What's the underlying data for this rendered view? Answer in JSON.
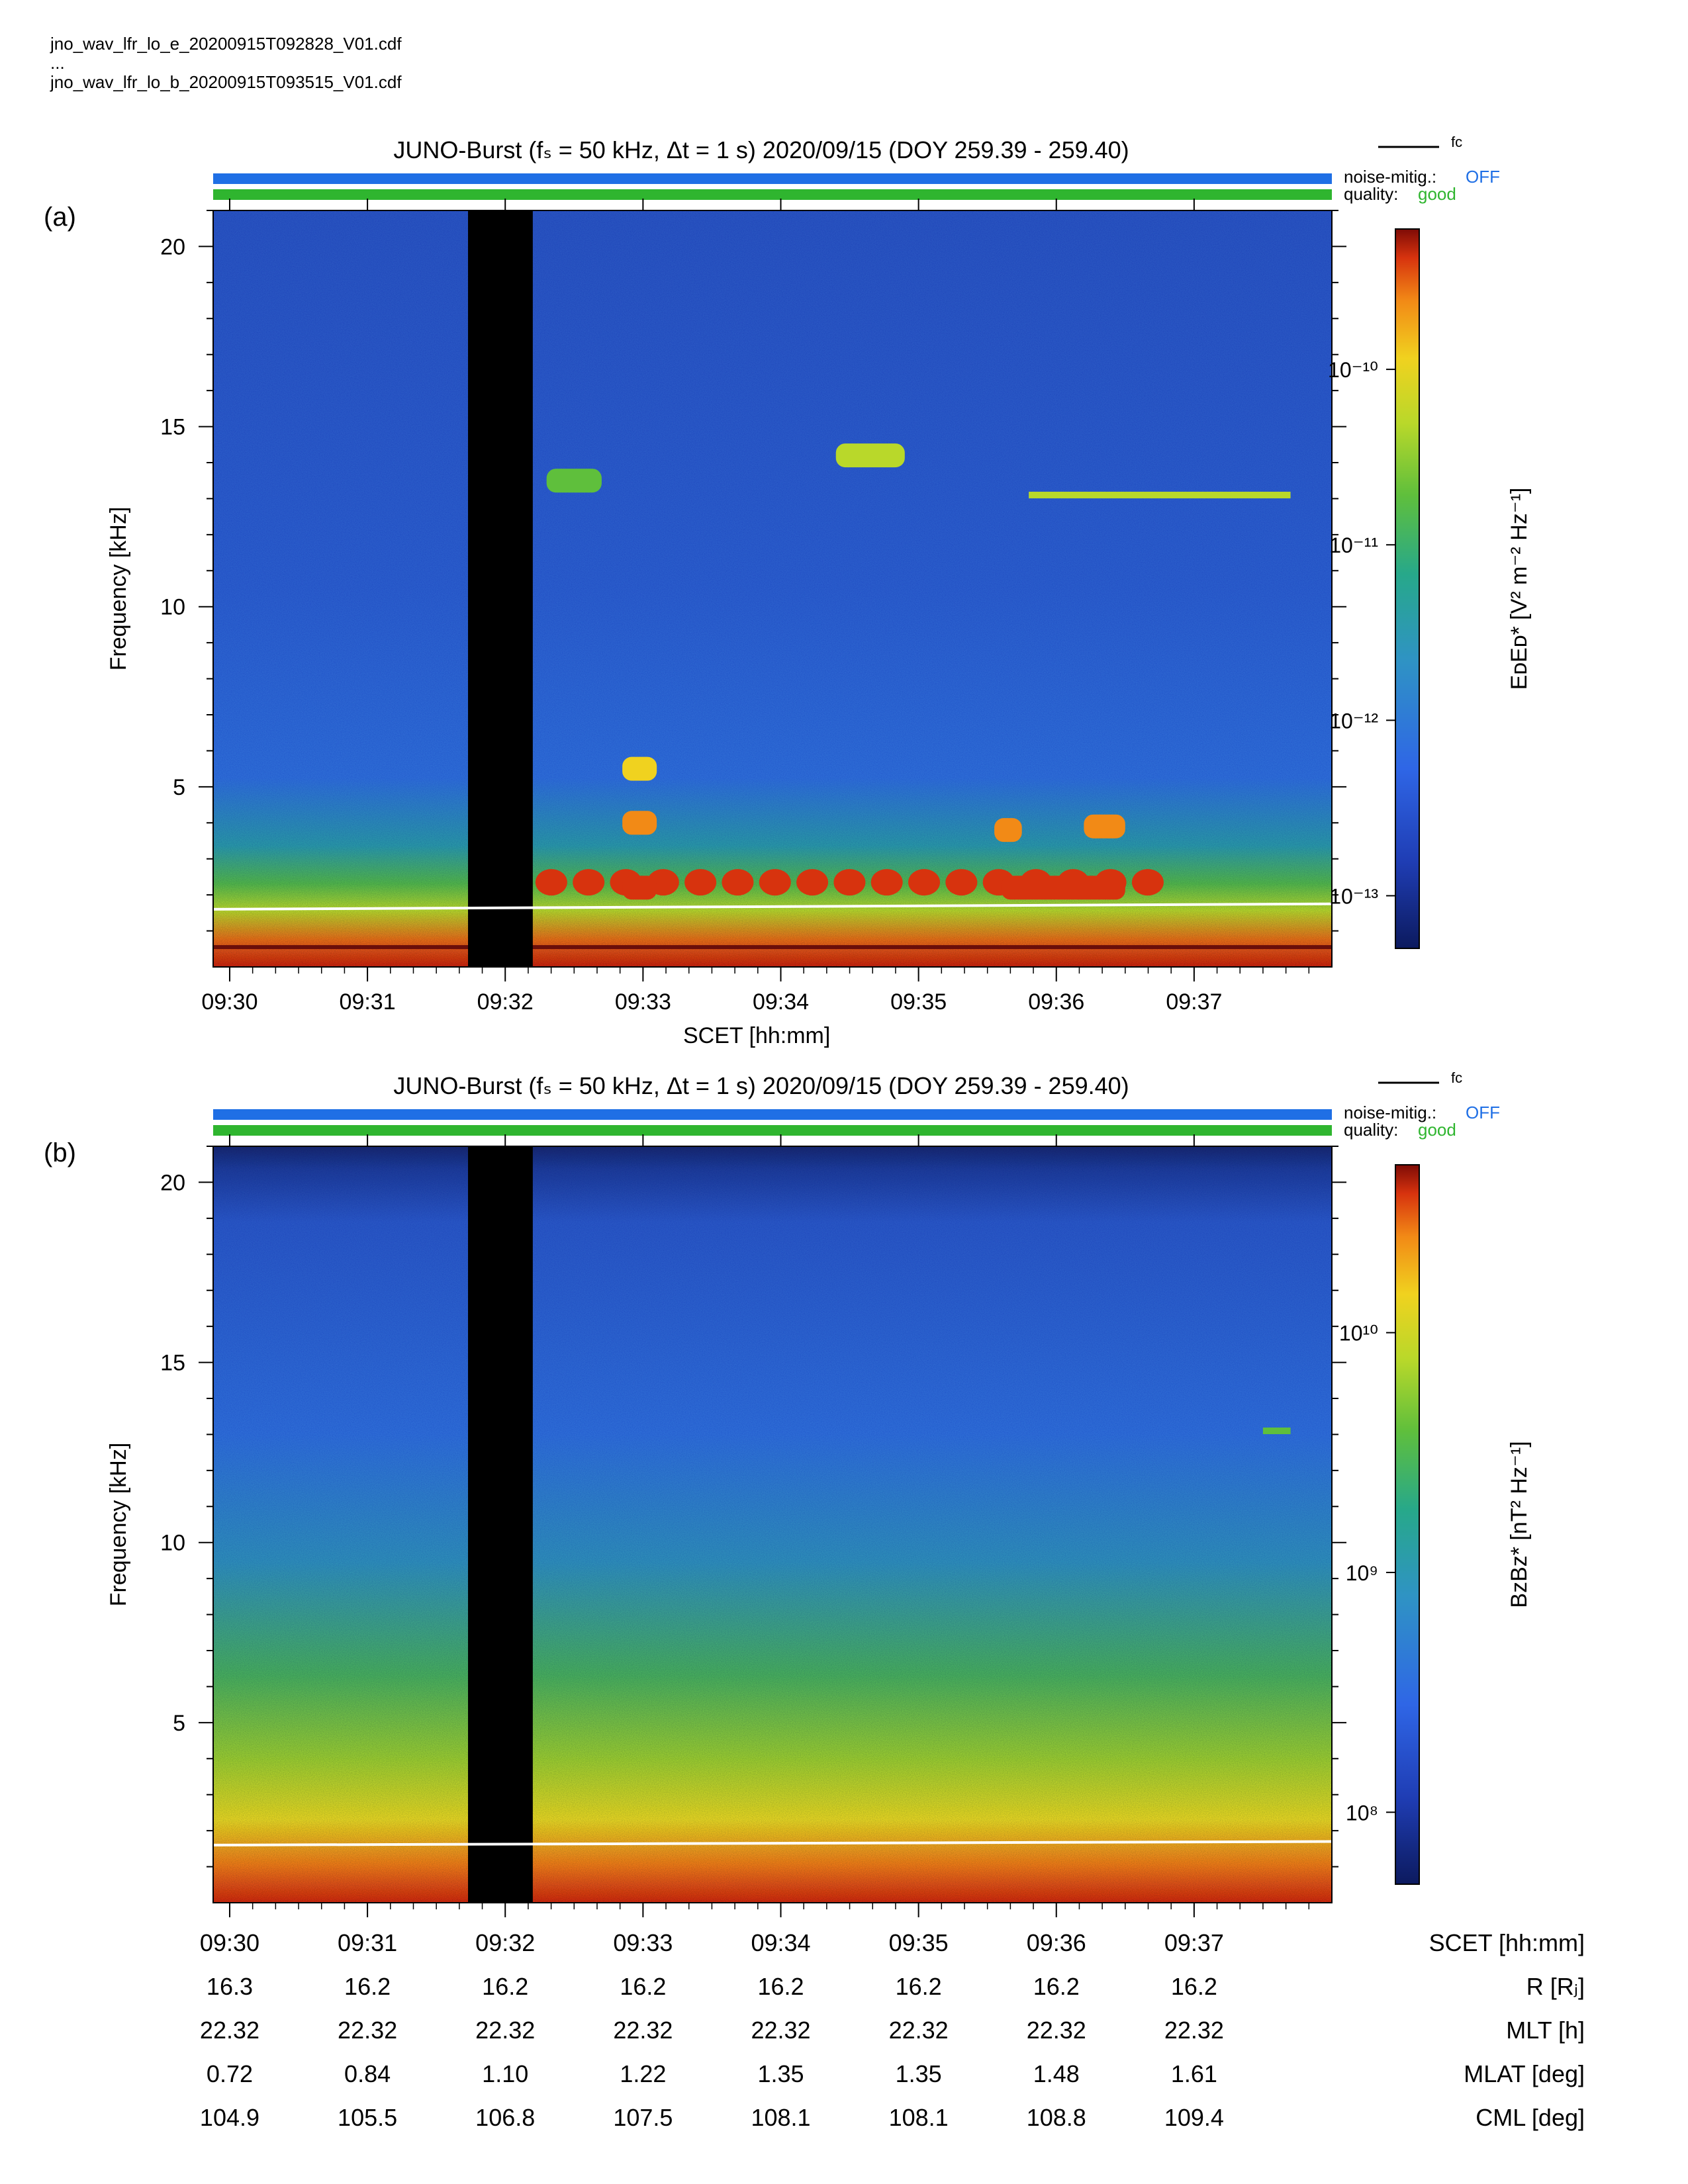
{
  "files": [
    "jno_wav_lfr_lo_e_20200915T092828_V01.cdf",
    "...",
    "jno_wav_lfr_lo_b_20200915T093515_V01.cdf"
  ],
  "panels": [
    {
      "letter": "(a)",
      "title": "JUNO-Burst (fₛ = 50 kHz, Δt = 1 s)  2020/09/15 (DOY 259.39 - 259.40)",
      "fc_legend": "fᴄ",
      "noise_label": "noise-mitig.:",
      "noise_value": "OFF",
      "quality_label": "quality:",
      "quality_value": "good",
      "ylabel": "Frequency [kHz]",
      "xlabel": "SCET [hh:mm]",
      "cbar_label": "EᴅEᴅ* [V² m⁻² Hz⁻¹]"
    },
    {
      "letter": "(b)",
      "title": "JUNO-Burst (fₛ = 50 kHz, Δt = 1 s)  2020/09/15 (DOY 259.39 - 259.40)",
      "fc_legend": "fᴄ",
      "noise_label": "noise-mitig.:",
      "noise_value": "OFF",
      "quality_label": "quality:",
      "quality_value": "good",
      "ylabel": "Frequency [kHz]",
      "cbar_label": "BᴢBᴢ* [nT² Hz⁻¹]"
    }
  ],
  "colors": {
    "noise_bar": "#1f6fe5",
    "quality_bar": "#2fb52f",
    "noise_text": "#1f6fe5",
    "quality_text": "#2fb52f",
    "data_gap": "#000000",
    "fc_line": "#ffffff"
  },
  "ephemeris": {
    "labels": [
      "SCET [hh:mm]",
      "R [Rⱼ]",
      "MLT [h]",
      "MLAT [deg]",
      "CML [deg]"
    ],
    "rows": [
      [
        "09:30",
        "09:31",
        "09:32",
        "09:33",
        "09:34",
        "09:35",
        "09:36",
        "09:37"
      ],
      [
        "16.3",
        "16.2",
        "16.2",
        "16.2",
        "16.2",
        "16.2",
        "16.2",
        "16.2"
      ],
      [
        "22.32",
        "22.32",
        "22.32",
        "22.32",
        "22.32",
        "22.32",
        "22.32",
        "22.32"
      ],
      [
        "0.72",
        "0.84",
        "1.10",
        "1.22",
        "1.35",
        "1.35",
        "1.48",
        "1.61"
      ],
      [
        "104.9",
        "105.5",
        "106.8",
        "107.5",
        "108.1",
        "108.1",
        "108.8",
        "109.4"
      ]
    ]
  },
  "chart_data": [
    {
      "type": "heatmap",
      "title": "JUNO-Burst (fₛ = 50 kHz, Δt = 1 s)  2020/09/15 (DOY 259.39 - 259.40)",
      "xlabel": "SCET [hh:mm]",
      "ylabel": "Frequency [kHz]",
      "x_ticks": [
        "09:30",
        "09:31",
        "09:32",
        "09:33",
        "09:34",
        "09:35",
        "09:36",
        "09:37"
      ],
      "x_range_min": [
        29.88,
        38.0
      ],
      "y_ticks": [
        5,
        10,
        15,
        20
      ],
      "ylim": [
        0,
        21
      ],
      "colorbar": {
        "label": "EᴅEᴅ* [V² m⁻² Hz⁻¹]",
        "scale": "log",
        "tick_labels": [
          "10⁻¹⁰",
          "10⁻¹¹",
          "10⁻¹²",
          "10⁻¹³"
        ],
        "tick_values": [
          -10,
          -11,
          -12,
          -13
        ],
        "range_log10": [
          -13.3,
          -9.2
        ]
      },
      "data_gap_min": [
        31.73,
        32.2
      ],
      "fc_line_khz": [
        1.6,
        1.75
      ],
      "features": [
        {
          "name": "band",
          "t_min": [
            32.2,
            36.8
          ],
          "f_khz": 2.35,
          "level_log10": -9.6
        },
        {
          "name": "blob",
          "t_min": [
            32.85,
            33.1
          ],
          "f_khz": 2.2,
          "level_log10": -9.4
        },
        {
          "name": "blob",
          "t_min": [
            35.6,
            36.5
          ],
          "f_khz": 2.2,
          "level_log10": -9.4
        },
        {
          "name": "blob",
          "t_min": [
            32.85,
            33.1
          ],
          "f_khz": 4.0,
          "level_log10": -9.8
        },
        {
          "name": "blob",
          "t_min": [
            32.85,
            33.1
          ],
          "f_khz": 5.5,
          "level_log10": -10.0
        },
        {
          "name": "blob",
          "t_min": [
            35.55,
            35.75
          ],
          "f_khz": 3.8,
          "level_log10": -9.8
        },
        {
          "name": "blob",
          "t_min": [
            36.2,
            36.5
          ],
          "f_khz": 3.9,
          "level_log10": -9.8
        },
        {
          "name": "line",
          "t_min": [
            35.8,
            37.7
          ],
          "f_khz": 13.1,
          "level_log10": -10.6
        },
        {
          "name": "blob",
          "t_min": [
            34.4,
            34.9
          ],
          "f_khz": 14.2,
          "level_log10": -10.4
        },
        {
          "name": "blob",
          "t_min": [
            32.3,
            32.7
          ],
          "f_khz": 13.5,
          "level_log10": -10.8
        }
      ]
    },
    {
      "type": "heatmap",
      "title": "JUNO-Burst (fₛ = 50 kHz, Δt = 1 s)  2020/09/15 (DOY 259.39 - 259.40)",
      "xlabel": "SCET [hh:mm]",
      "ylabel": "Frequency [kHz]",
      "x_ticks": [
        "09:30",
        "09:31",
        "09:32",
        "09:33",
        "09:34",
        "09:35",
        "09:36",
        "09:37"
      ],
      "x_range_min": [
        29.88,
        38.0
      ],
      "y_ticks": [
        5,
        10,
        15,
        20
      ],
      "ylim": [
        0,
        21
      ],
      "colorbar": {
        "label": "BᴢBᴢ* [nT² Hz⁻¹]",
        "scale": "log",
        "tick_labels": [
          "10¹⁰",
          "10⁹",
          "10⁸"
        ],
        "tick_values": [
          10,
          9,
          8
        ],
        "range_log10": [
          7.7,
          10.7
        ]
      },
      "data_gap_min": [
        31.73,
        32.2
      ],
      "fc_line_khz": [
        1.6,
        1.7
      ],
      "features": [
        {
          "name": "line",
          "t_min": [
            37.5,
            37.7
          ],
          "f_khz": 13.1,
          "level_log10": 9.3
        }
      ]
    }
  ]
}
